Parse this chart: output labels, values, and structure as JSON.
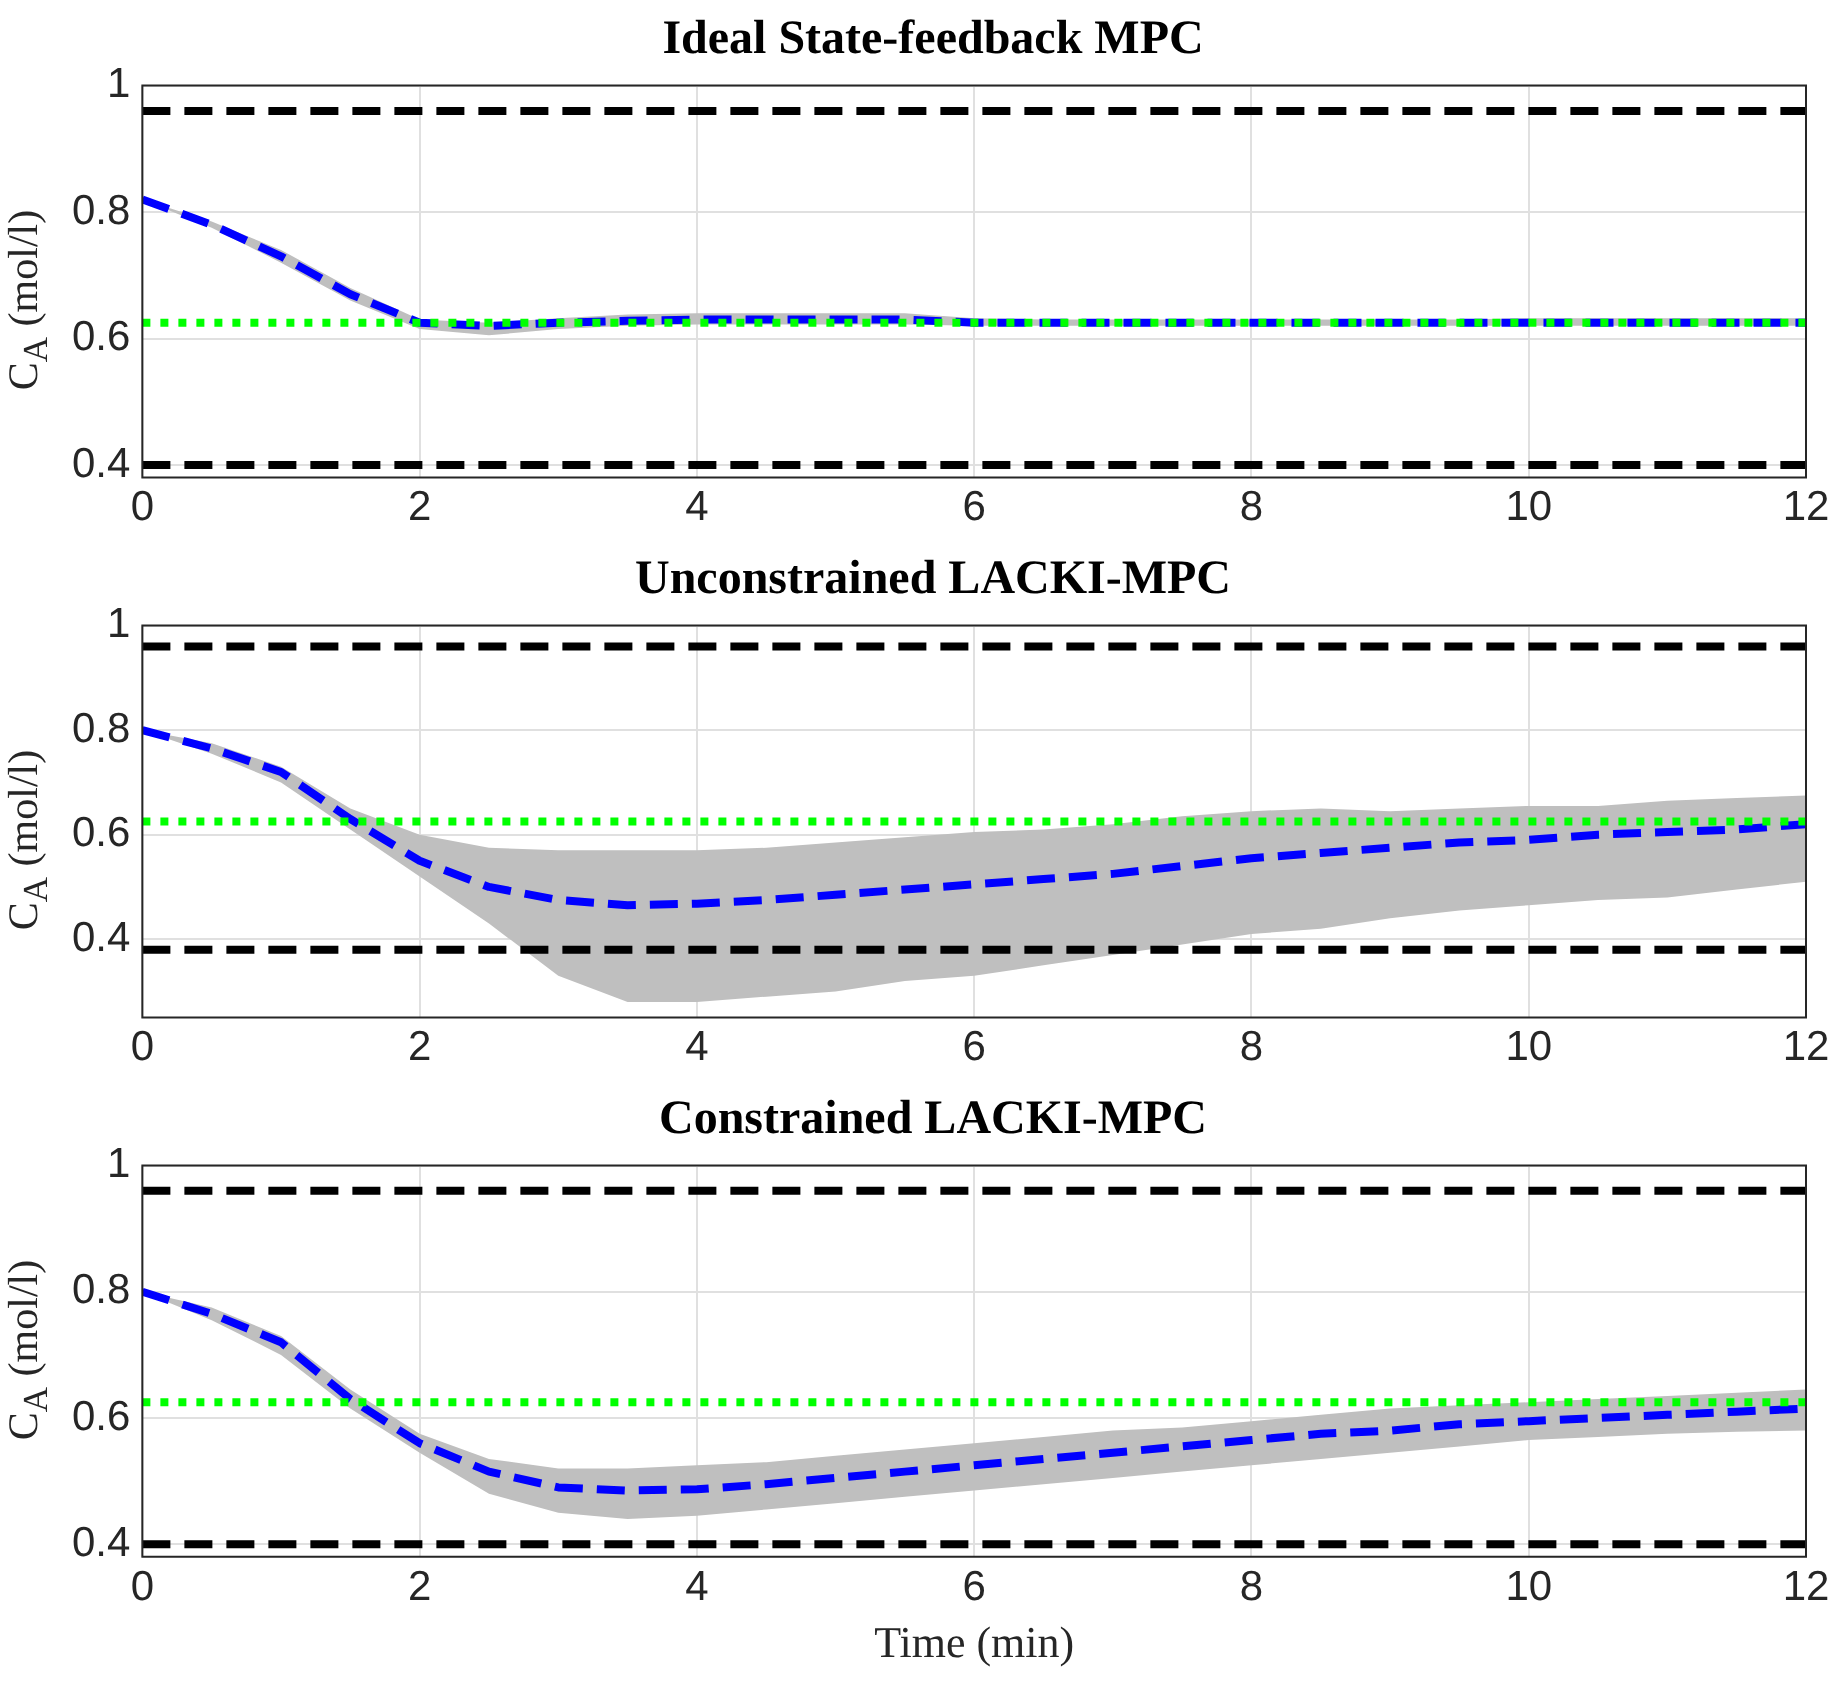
{
  "chart_data": [
    {
      "type": "line",
      "title": "Ideal State-feedback MPC",
      "ylabel": "C$_{A}$ (mol/l)",
      "x": [
        0,
        0.5,
        1,
        1.5,
        2,
        2.5,
        3,
        3.5,
        4,
        4.5,
        5,
        5.5,
        6,
        6.5,
        7,
        7.5,
        8,
        8.5,
        9,
        9.5,
        10,
        10.5,
        11,
        11.5,
        12
      ],
      "xlim": [
        0,
        12
      ],
      "xticks": [
        0,
        2,
        4,
        6,
        8,
        10,
        12
      ],
      "ylim": [
        0.38,
        1
      ],
      "yticks": [
        0.4,
        0.6,
        0.8,
        1
      ],
      "grid": true,
      "legend": false,
      "marker": "none",
      "series": [
        {
          "color": "#0000ff",
          "line_style": "dashed",
          "values": [
            0.82,
            0.78,
            0.73,
            0.67,
            0.625,
            0.62,
            0.625,
            0.628,
            0.63,
            0.63,
            0.63,
            0.63,
            0.625,
            0.625,
            0.625,
            0.625,
            0.625,
            0.625,
            0.625,
            0.625,
            0.625,
            0.625,
            0.625,
            0.625,
            0.625
          ],
          "lower": [
            0.82,
            0.775,
            0.72,
            0.66,
            0.615,
            0.605,
            0.615,
            0.62,
            0.622,
            0.622,
            0.622,
            0.622,
            0.62,
            0.62,
            0.62,
            0.62,
            0.62,
            0.62,
            0.62,
            0.62,
            0.62,
            0.62,
            0.62,
            0.62,
            0.62
          ],
          "upper": [
            0.82,
            0.785,
            0.74,
            0.68,
            0.63,
            0.625,
            0.632,
            0.638,
            0.64,
            0.64,
            0.64,
            0.64,
            0.632,
            0.63,
            0.63,
            0.63,
            0.63,
            0.63,
            0.63,
            0.63,
            0.632,
            0.632,
            0.632,
            0.632,
            0.632
          ]
        }
      ],
      "ref_lines": [
        {
          "axis": "y",
          "value": 0.96,
          "color": "#000000",
          "line_style": "dashed"
        },
        {
          "axis": "y",
          "value": 0.4,
          "color": "#000000",
          "line_style": "dashed"
        },
        {
          "axis": "y",
          "value": 0.625,
          "color": "#00ff00",
          "line_style": "dotted"
        }
      ]
    },
    {
      "type": "line",
      "title": "Unconstrained LACKI-MPC",
      "ylabel": "C$_{A}$ (mol/l)",
      "x": [
        0,
        0.5,
        1,
        1.5,
        2,
        2.5,
        3,
        3.5,
        4,
        4.5,
        5,
        5.5,
        6,
        6.5,
        7,
        7.5,
        8,
        8.5,
        9,
        9.5,
        10,
        10.5,
        11,
        11.5,
        12
      ],
      "xlim": [
        0,
        12
      ],
      "xticks": [
        0,
        2,
        4,
        6,
        8,
        10,
        12
      ],
      "ylim": [
        0.25,
        1
      ],
      "yticks": [
        0.4,
        0.6,
        0.8,
        1
      ],
      "grid": true,
      "legend": false,
      "marker": "none",
      "series": [
        {
          "color": "#0000ff",
          "line_style": "dashed",
          "values": [
            0.8,
            0.765,
            0.72,
            0.63,
            0.55,
            0.5,
            0.475,
            0.465,
            0.468,
            0.475,
            0.485,
            0.495,
            0.505,
            0.515,
            0.525,
            0.54,
            0.555,
            0.565,
            0.575,
            0.585,
            0.59,
            0.6,
            0.605,
            0.61,
            0.62
          ],
          "lower": [
            0.8,
            0.755,
            0.7,
            0.61,
            0.52,
            0.43,
            0.33,
            0.28,
            0.28,
            0.29,
            0.3,
            0.32,
            0.33,
            0.35,
            0.37,
            0.39,
            0.41,
            0.42,
            0.44,
            0.455,
            0.465,
            0.475,
            0.48,
            0.495,
            0.51
          ],
          "upper": [
            0.8,
            0.775,
            0.73,
            0.65,
            0.6,
            0.575,
            0.57,
            0.57,
            0.57,
            0.575,
            0.585,
            0.595,
            0.605,
            0.61,
            0.62,
            0.635,
            0.645,
            0.65,
            0.645,
            0.65,
            0.655,
            0.655,
            0.665,
            0.67,
            0.675
          ]
        }
      ],
      "ref_lines": [
        {
          "axis": "y",
          "value": 0.96,
          "color": "#000000",
          "line_style": "dashed"
        },
        {
          "axis": "y",
          "value": 0.38,
          "color": "#000000",
          "line_style": "dashed"
        },
        {
          "axis": "y",
          "value": 0.625,
          "color": "#00ff00",
          "line_style": "dotted"
        }
      ]
    },
    {
      "type": "line",
      "title": "Constrained LACKI-MPC",
      "xlabel": "Time (min)",
      "ylabel": "C$_{A}$ (mol/l)",
      "x": [
        0,
        0.5,
        1,
        1.5,
        2,
        2.5,
        3,
        3.5,
        4,
        4.5,
        5,
        5.5,
        6,
        6.5,
        7,
        7.5,
        8,
        8.5,
        9,
        9.5,
        10,
        10.5,
        11,
        11.5,
        12
      ],
      "xlim": [
        0,
        12
      ],
      "xticks": [
        0,
        2,
        4,
        6,
        8,
        10,
        12
      ],
      "ylim": [
        0.38,
        1
      ],
      "yticks": [
        0.4,
        0.6,
        0.8,
        1
      ],
      "grid": true,
      "legend": false,
      "marker": "none",
      "series": [
        {
          "color": "#0000ff",
          "line_style": "dashed",
          "values": [
            0.8,
            0.765,
            0.72,
            0.63,
            0.56,
            0.515,
            0.49,
            0.485,
            0.487,
            0.495,
            0.505,
            0.515,
            0.525,
            0.535,
            0.545,
            0.555,
            0.565,
            0.575,
            0.58,
            0.59,
            0.595,
            0.6,
            0.605,
            0.61,
            0.615
          ],
          "lower": [
            0.8,
            0.755,
            0.7,
            0.615,
            0.545,
            0.48,
            0.45,
            0.44,
            0.445,
            0.455,
            0.465,
            0.475,
            0.485,
            0.495,
            0.505,
            0.515,
            0.525,
            0.535,
            0.545,
            0.555,
            0.565,
            0.57,
            0.575,
            0.578,
            0.58
          ],
          "upper": [
            0.8,
            0.775,
            0.73,
            0.645,
            0.575,
            0.535,
            0.52,
            0.52,
            0.525,
            0.53,
            0.54,
            0.55,
            0.56,
            0.57,
            0.58,
            0.585,
            0.595,
            0.605,
            0.615,
            0.62,
            0.625,
            0.63,
            0.635,
            0.64,
            0.645
          ]
        }
      ],
      "ref_lines": [
        {
          "axis": "y",
          "value": 0.96,
          "color": "#000000",
          "line_style": "dashed"
        },
        {
          "axis": "y",
          "value": 0.4,
          "color": "#000000",
          "line_style": "dashed"
        },
        {
          "axis": "y",
          "value": 0.625,
          "color": "#00ff00",
          "line_style": "dotted"
        }
      ]
    }
  ]
}
